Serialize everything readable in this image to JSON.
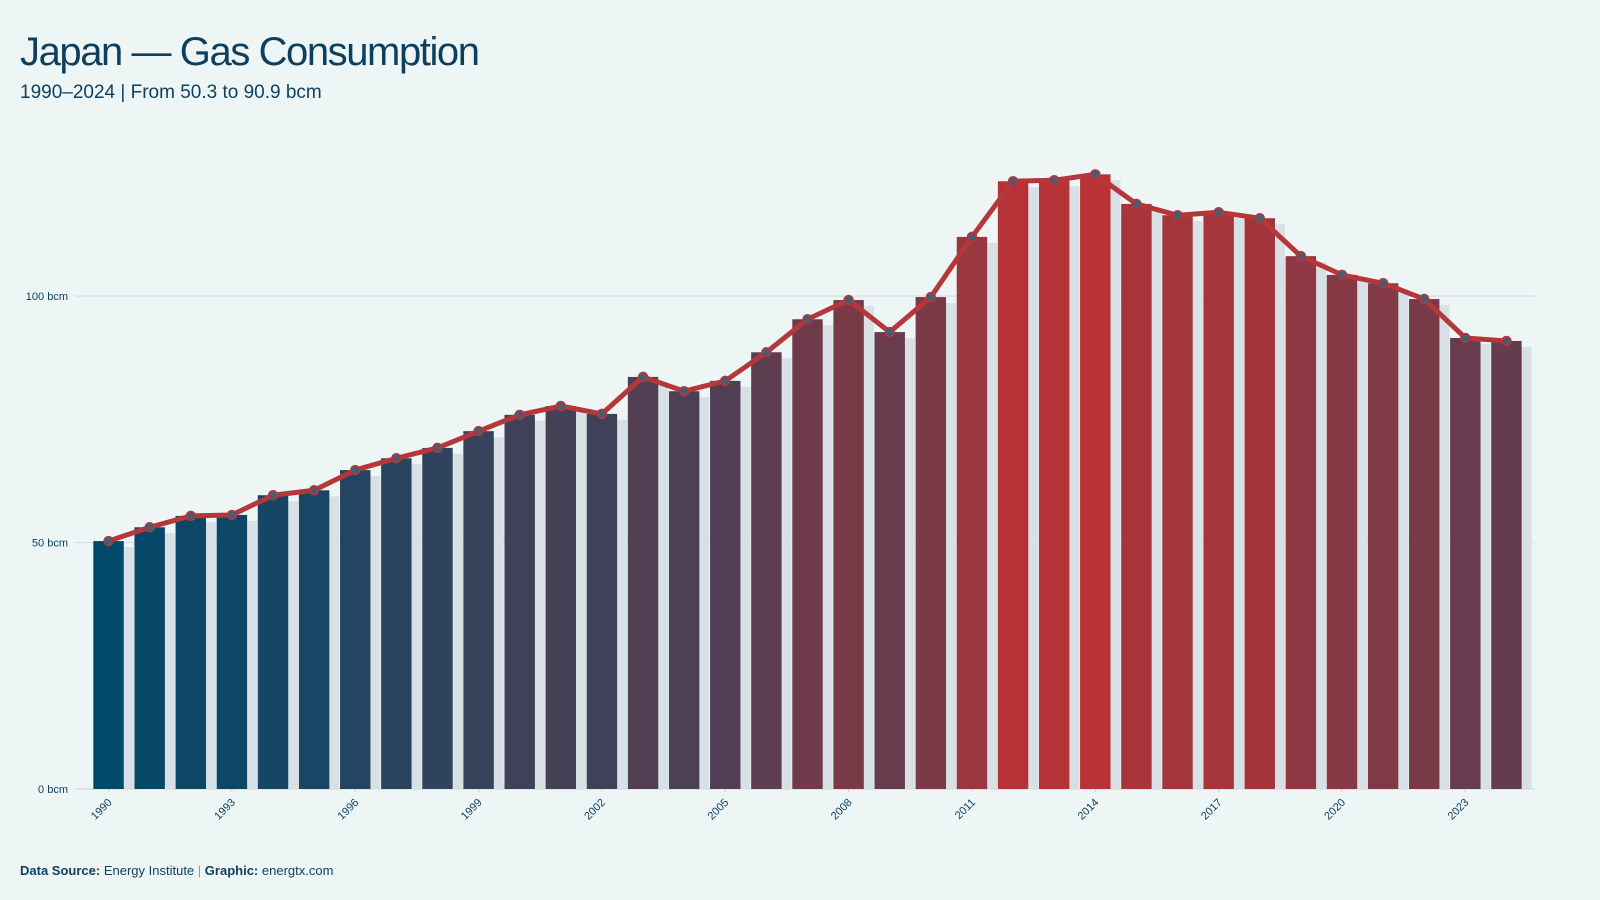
{
  "chart_data": {
    "type": "bar",
    "title": "Japan — Gas Consumption",
    "subtitle": "1990–2024 | From 50.3 to 90.9 bcm",
    "x": [
      1990,
      1991,
      1992,
      1993,
      1994,
      1995,
      1996,
      1997,
      1998,
      1999,
      2000,
      2001,
      2002,
      2003,
      2004,
      2005,
      2006,
      2007,
      2008,
      2009,
      2010,
      2011,
      2012,
      2013,
      2014,
      2015,
      2016,
      2017,
      2018,
      2019,
      2020,
      2021,
      2022,
      2023,
      2024
    ],
    "values": [
      50.3,
      53.1,
      55.4,
      55.6,
      59.6,
      60.6,
      64.7,
      67.1,
      69.2,
      72.6,
      75.9,
      77.7,
      76.1,
      83.6,
      80.7,
      82.8,
      88.6,
      95.3,
      99.2,
      92.7,
      99.8,
      112.0,
      123.3,
      123.5,
      124.7,
      118.7,
      116.4,
      117.0,
      115.8,
      108.1,
      104.3,
      102.6,
      99.4,
      91.5,
      90.9
    ],
    "bar_colors": [
      "#00496b",
      "#b83236"
    ],
    "line": {
      "color": "#b5373a",
      "marker_color": "#4d5a72"
    },
    "xlim": [
      1989.5,
      2024.5
    ],
    "xticks": [
      1990,
      1993,
      1996,
      1999,
      2002,
      2005,
      2008,
      2011,
      2014,
      2017,
      2020,
      2023
    ],
    "ylim": [
      0,
      127
    ],
    "yticks": [
      {
        "value": 0,
        "label": "0 bcm"
      },
      {
        "value": 50,
        "label": "50 bcm"
      },
      {
        "value": 100,
        "label": "100 bcm"
      }
    ],
    "grid": true,
    "footer": {
      "source_label": "Data Source:",
      "source": "Energy Institute",
      "separator": "|",
      "graphic_label": "Graphic:",
      "graphic": "energtx.com"
    }
  }
}
